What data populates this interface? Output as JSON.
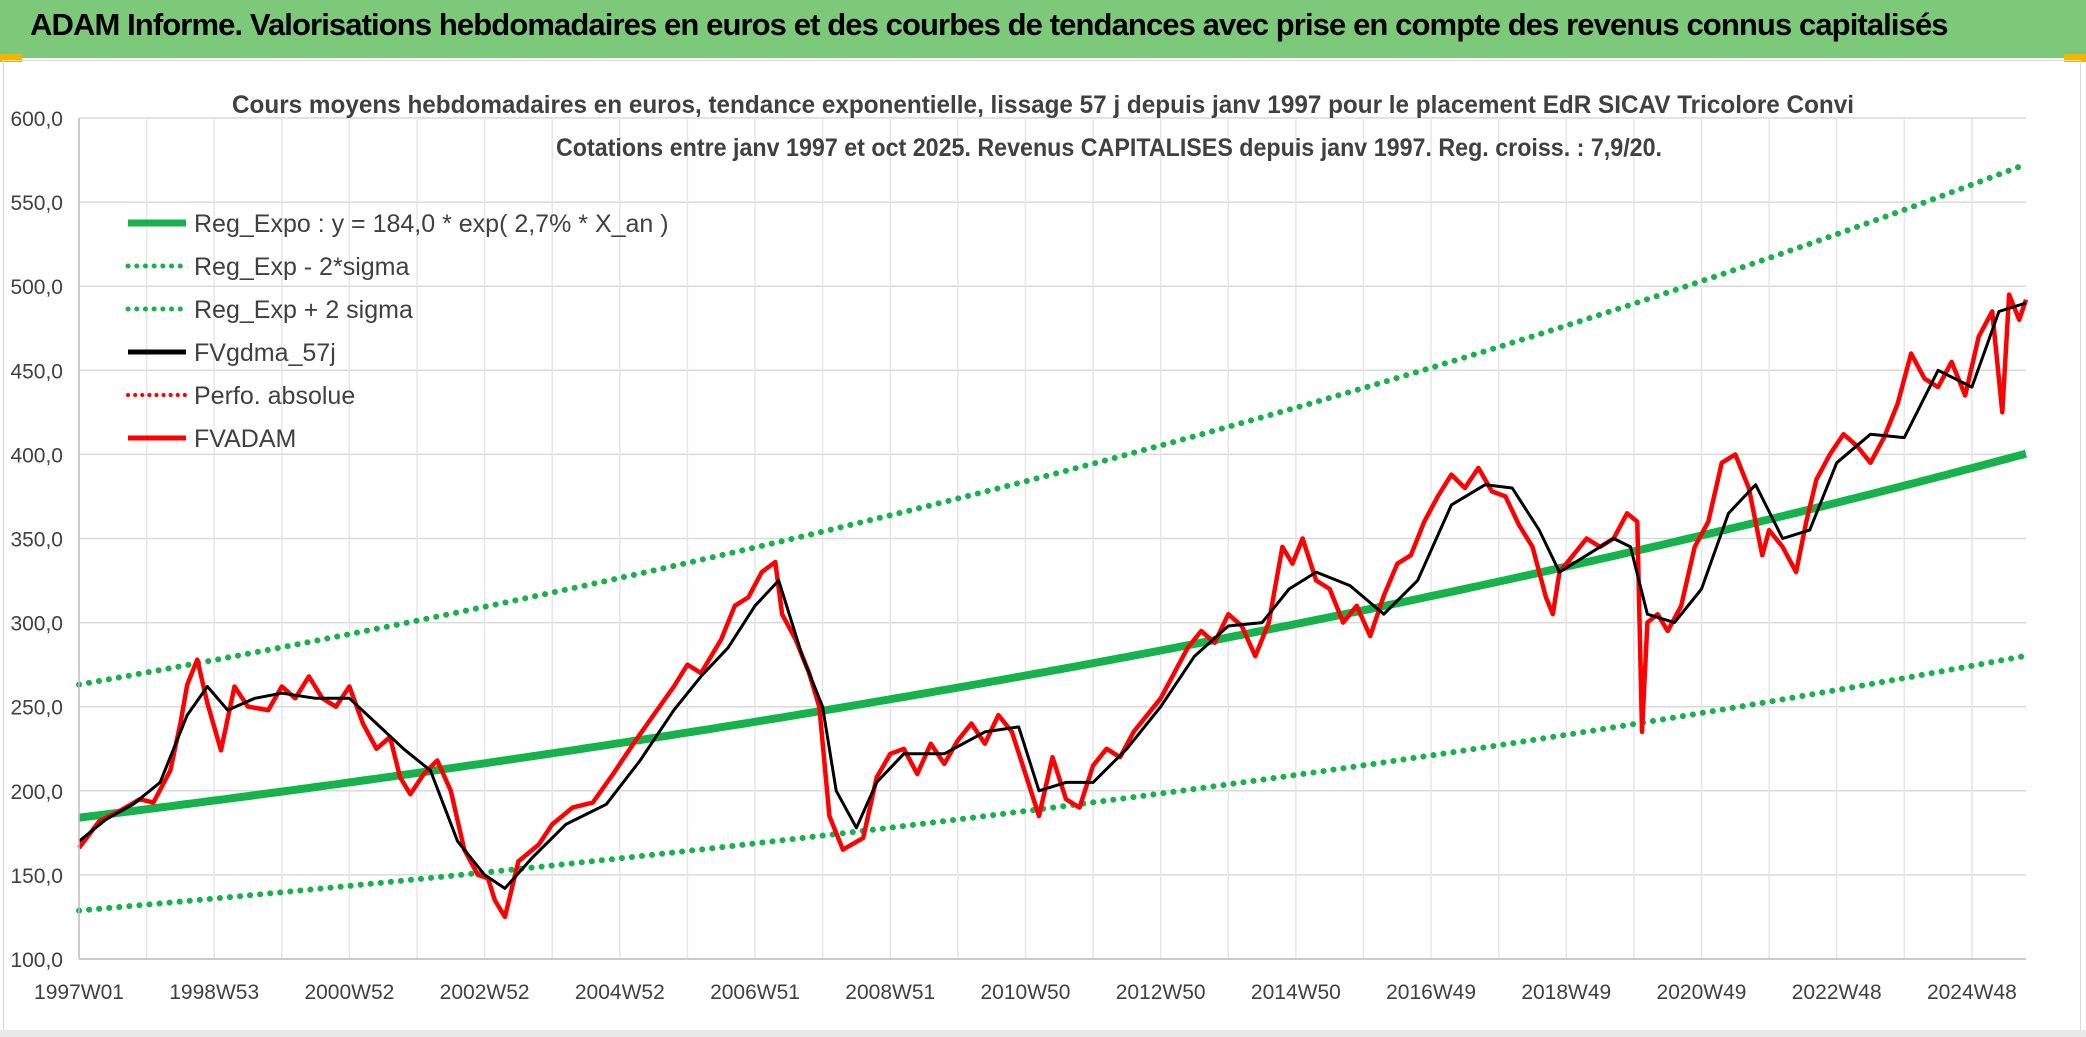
{
  "banner": {
    "title": "ADAM Informe. Valorisations hebdomadaires en euros et des courbes de tendances avec prise en compte des revenus connus capitalisés"
  },
  "colors": {
    "banner_bg": "#7dc97a",
    "trend": "#16b24b",
    "smooth": "#000000",
    "price": "#ff0000",
    "grid": "#d9d9d9",
    "accent": "#f4b400"
  },
  "chart_data": {
    "type": "line",
    "title_line1": "Cours moyens hebdomadaires en euros, tendance exponentielle, lissage 57 j depuis janv 1997 pour le placement EdR SICAV Tricolore Convi",
    "title_line2": "Cotations entre janv 1997 et oct 2025. Revenus CAPITALISES depuis janv 1997. Reg. croiss. : 7,9/20.",
    "xlabel": "",
    "ylabel": "",
    "ylim": [
      100,
      600
    ],
    "xlim": [
      1997.0,
      2025.8
    ],
    "y_ticks": [
      "600,0",
      "550,0",
      "500,0",
      "450,0",
      "400,0",
      "350,0",
      "300,0",
      "250,0",
      "200,0",
      "150,0",
      "100,0"
    ],
    "y_tick_values": [
      600,
      550,
      500,
      450,
      400,
      350,
      300,
      250,
      200,
      150,
      100
    ],
    "x_ticks": [
      "1997W01",
      "1998W53",
      "2000W52",
      "2002W52",
      "2004W52",
      "2006W51",
      "2008W51",
      "2010W50",
      "2012W50",
      "2014W50",
      "2016W49",
      "2018W49",
      "2020W49",
      "2022W48",
      "2024W48"
    ],
    "x_tick_values": [
      1997.0,
      1999.0,
      2001.0,
      2003.0,
      2005.0,
      2007.0,
      2009.0,
      2011.0,
      2013.0,
      2015.0,
      2017.0,
      2019.0,
      2021.0,
      2023.0,
      2025.0
    ],
    "legend": [
      {
        "label": "Reg_Expo : y = 184,0 * exp( 2,7% *  X_an )",
        "style": "solid-thick",
        "color": "#16b24b"
      },
      {
        "label": "Reg_Exp - 2*sigma",
        "style": "dotted",
        "color": "#16b24b"
      },
      {
        "label": "Reg_Exp + 2 sigma",
        "style": "dotted",
        "color": "#16b24b"
      },
      {
        "label": "FVgdma_57j",
        "style": "solid",
        "color": "#000000"
      },
      {
        "label": "Perfo. absolue",
        "style": "dotted",
        "color": "#ff0000"
      },
      {
        "label": "FVADAM",
        "style": "solid",
        "color": "#ff0000"
      }
    ],
    "legend_position": "top-left",
    "regression": {
      "a": 184.0,
      "rate": 0.027,
      "x0": 1997.0,
      "lower_factor": 0.7,
      "upper_factor": 1.43
    },
    "series": [
      {
        "name": "FVADAM",
        "x": [
          1997.0,
          1997.3,
          1997.6,
          1997.9,
          1998.1,
          1998.35,
          1998.5,
          1998.6,
          1998.75,
          1998.9,
          1999.1,
          1999.3,
          1999.5,
          1999.8,
          2000.0,
          2000.2,
          2000.4,
          2000.6,
          2000.8,
          2001.0,
          2001.2,
          2001.4,
          2001.6,
          2001.75,
          2001.9,
          2002.1,
          2002.3,
          2002.5,
          2002.7,
          2002.9,
          2003.05,
          2003.15,
          2003.3,
          2003.5,
          2003.8,
          2004.0,
          2004.3,
          2004.6,
          2004.9,
          2005.2,
          2005.5,
          2005.8,
          2006.0,
          2006.2,
          2006.5,
          2006.7,
          2006.9,
          2007.1,
          2007.3,
          2007.4,
          2007.6,
          2007.8,
          2007.95,
          2008.1,
          2008.3,
          2008.6,
          2008.8,
          2008.9,
          2009.0,
          2009.2,
          2009.4,
          2009.6,
          2009.8,
          2010.0,
          2010.2,
          2010.4,
          2010.6,
          2010.8,
          2011.0,
          2011.2,
          2011.4,
          2011.6,
          2011.8,
          2012.0,
          2012.2,
          2012.4,
          2012.6,
          2012.8,
          2013.0,
          2013.2,
          2013.4,
          2013.6,
          2013.8,
          2014.0,
          2014.2,
          2014.4,
          2014.6,
          2014.8,
          2014.95,
          2015.1,
          2015.3,
          2015.5,
          2015.7,
          2015.9,
          2016.1,
          2016.3,
          2016.5,
          2016.7,
          2016.9,
          2017.1,
          2017.3,
          2017.5,
          2017.7,
          2017.9,
          2018.1,
          2018.3,
          2018.5,
          2018.7,
          2018.8,
          2018.9,
          2019.1,
          2019.3,
          2019.5,
          2019.7,
          2019.9,
          2020.05,
          2020.12,
          2020.2,
          2020.35,
          2020.5,
          2020.7,
          2020.9,
          2021.1,
          2021.3,
          2021.5,
          2021.7,
          2021.9,
          2022.0,
          2022.2,
          2022.4,
          2022.55,
          2022.7,
          2022.9,
          2023.1,
          2023.3,
          2023.5,
          2023.7,
          2023.9,
          2024.1,
          2024.3,
          2024.5,
          2024.7,
          2024.9,
          2025.1,
          2025.3,
          2025.45,
          2025.55,
          2025.7,
          2025.8
        ],
        "values": [
          166,
          182,
          188,
          195,
          193,
          212,
          240,
          263,
          278,
          252,
          224,
          262,
          250,
          248,
          262,
          255,
          268,
          255,
          250,
          262,
          240,
          225,
          232,
          208,
          198,
          210,
          218,
          200,
          165,
          150,
          148,
          135,
          125,
          158,
          168,
          180,
          190,
          193,
          210,
          228,
          245,
          262,
          275,
          270,
          290,
          310,
          315,
          330,
          336,
          305,
          290,
          270,
          250,
          185,
          165,
          172,
          208,
          215,
          222,
          225,
          210,
          228,
          216,
          230,
          240,
          228,
          245,
          235,
          210,
          185,
          220,
          195,
          190,
          215,
          225,
          220,
          235,
          245,
          255,
          270,
          285,
          295,
          288,
          305,
          298,
          280,
          300,
          345,
          335,
          350,
          325,
          320,
          300,
          310,
          292,
          316,
          335,
          340,
          360,
          375,
          388,
          380,
          392,
          378,
          375,
          358,
          345,
          315,
          305,
          330,
          340,
          350,
          345,
          350,
          365,
          360,
          235,
          300,
          305,
          295,
          310,
          345,
          360,
          395,
          400,
          380,
          340,
          355,
          345,
          330,
          360,
          385,
          400,
          412,
          405,
          395,
          410,
          430,
          460,
          445,
          440,
          455,
          435,
          470,
          485,
          425,
          495,
          480,
          492
        ]
      },
      {
        "name": "FVgdma_57j",
        "x": [
          1997.0,
          1997.4,
          1997.8,
          1998.2,
          1998.6,
          1998.9,
          1999.2,
          1999.6,
          2000.0,
          2000.5,
          2001.0,
          2001.4,
          2001.8,
          2002.2,
          2002.6,
          2003.0,
          2003.3,
          2003.7,
          2004.2,
          2004.8,
          2005.3,
          2005.8,
          2006.2,
          2006.6,
          2007.0,
          2007.35,
          2007.7,
          2008.0,
          2008.2,
          2008.5,
          2008.8,
          2009.2,
          2009.8,
          2010.4,
          2010.9,
          2011.2,
          2011.6,
          2012.0,
          2012.5,
          2013.0,
          2013.5,
          2014.0,
          2014.5,
          2014.9,
          2015.3,
          2015.8,
          2016.3,
          2016.8,
          2017.3,
          2017.8,
          2018.2,
          2018.6,
          2018.9,
          2019.3,
          2019.7,
          2019.95,
          2020.2,
          2020.6,
          2021.0,
          2021.4,
          2021.8,
          2022.2,
          2022.6,
          2023.0,
          2023.5,
          2024.0,
          2024.5,
          2025.0,
          2025.4,
          2025.8
        ],
        "values": [
          170,
          183,
          192,
          205,
          245,
          262,
          248,
          255,
          258,
          255,
          255,
          240,
          225,
          212,
          170,
          150,
          142,
          160,
          180,
          192,
          218,
          248,
          268,
          285,
          310,
          325,
          280,
          250,
          200,
          178,
          205,
          222,
          222,
          235,
          238,
          200,
          205,
          205,
          225,
          250,
          280,
          298,
          300,
          320,
          330,
          322,
          305,
          325,
          370,
          382,
          380,
          355,
          330,
          340,
          350,
          345,
          305,
          300,
          320,
          365,
          382,
          350,
          355,
          395,
          412,
          410,
          450,
          440,
          485,
          490
        ]
      }
    ]
  }
}
